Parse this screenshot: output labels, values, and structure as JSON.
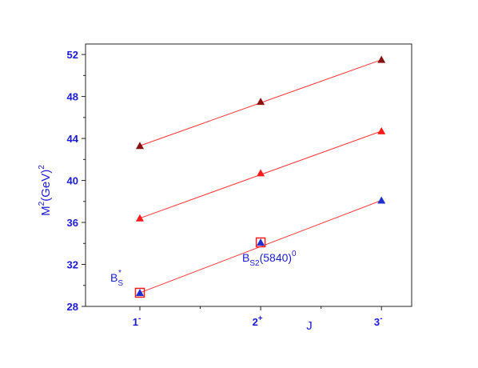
{
  "chart_data": {
    "type": "scatter",
    "title": "",
    "ylabel": "M",
    "ylabel_sup1": "2",
    "ylabel_mid": "(GeV)",
    "ylabel_sup2": "2",
    "xlabel": "J",
    "ylim": [
      28,
      53
    ],
    "yticks": [
      28,
      32,
      36,
      40,
      44,
      48,
      52
    ],
    "yticks_minor": [
      30,
      34,
      38,
      42,
      46,
      50
    ],
    "xlim": [
      0.55,
      3.25
    ],
    "xticks": [
      {
        "x": 1,
        "base": "1",
        "sup": "-"
      },
      {
        "x": 2,
        "base": "2",
        "sup": "+"
      },
      {
        "x": 3,
        "base": "3",
        "sup": "-"
      }
    ],
    "xticks_minor": [
      1.5,
      2.5
    ],
    "grid": false,
    "series": [
      {
        "color": "#1f2fd0",
        "fit_color": "#ff3333",
        "marker": "triangle",
        "points": [
          [
            1,
            29.3
          ],
          [
            2,
            34.1
          ],
          [
            3,
            38.1
          ]
        ],
        "boxed": [
          0,
          1
        ]
      },
      {
        "color": "#ff1a1a",
        "fit_color": "#ff3333",
        "marker": "triangle",
        "points": [
          [
            1,
            36.4
          ],
          [
            2,
            40.7
          ],
          [
            3,
            44.7
          ]
        ],
        "boxed": []
      },
      {
        "color": "#8b1010",
        "fit_color": "#ff3333",
        "marker": "triangle",
        "points": [
          [
            1,
            43.3
          ],
          [
            2,
            47.5
          ],
          [
            3,
            51.5
          ]
        ],
        "boxed": []
      }
    ],
    "annotations": [
      {
        "base": "B",
        "sub": "S",
        "sup": "*"
      },
      {
        "base": "B",
        "sub": "S2",
        "mid": "(5840)",
        "sup": "0"
      }
    ]
  }
}
